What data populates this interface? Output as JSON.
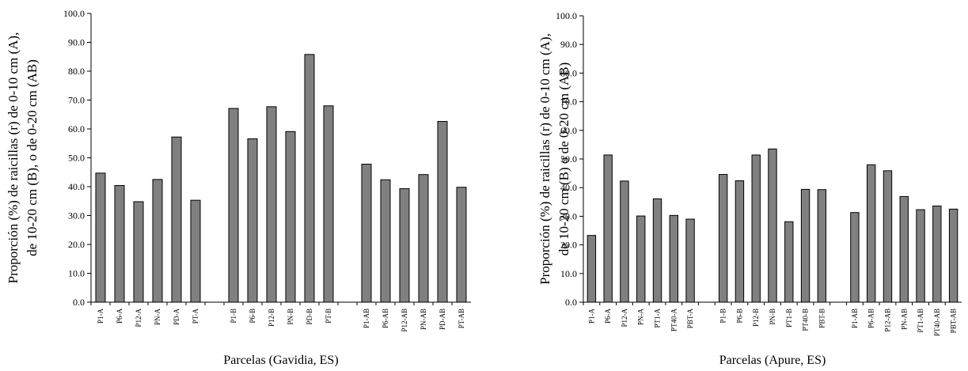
{
  "chart_data": [
    {
      "type": "bar",
      "ylabel": [
        "Proporción (%) de raicillas (r) de 0-10 cm (A),",
        "de 10-20 cm (B), o de 0-20 cm (AB)"
      ],
      "xlabel": "Parcelas (Gavidia, ES)",
      "categories": [
        "P1-A",
        "P6-A",
        "P12-A",
        "PN-A",
        "PD-A",
        "PT-A",
        null,
        "P1-B",
        "P6-B",
        "P12-B",
        "PN-B",
        "PD-B",
        "PT-B",
        null,
        "P1-AB",
        "P6-AB",
        "P12-AB",
        "PN-AB",
        "PD-AB",
        "PT-AB"
      ],
      "values": [
        44.7,
        40.4,
        34.8,
        42.5,
        57.2,
        35.3,
        null,
        67.1,
        56.6,
        67.7,
        59.1,
        85.8,
        68.0,
        null,
        47.8,
        42.4,
        39.3,
        44.2,
        62.6,
        39.8
      ],
      "color": "#808080",
      "ylim": [
        0,
        100
      ],
      "yticks": [
        {
          "value": 0,
          "label": "0.0"
        },
        {
          "value": 10,
          "label": "10.0"
        },
        {
          "value": 20,
          "label": "20.0"
        },
        {
          "value": 30,
          "label": "30.0"
        },
        {
          "value": 40,
          "label": "40.0"
        },
        {
          "value": 50,
          "label": "50.0"
        },
        {
          "value": 60,
          "label": "60.0"
        },
        {
          "value": 70,
          "label": "70.0"
        },
        {
          "value": 80,
          "label": "80.0"
        },
        {
          "value": 90,
          "label": "90.0"
        },
        {
          "value": 100,
          "label": "100.0"
        }
      ]
    },
    {
      "type": "bar",
      "ylabel": [
        "Proporción  (%) de raicillas (r) de 0-10 cm (A),",
        "de 10-20 cm (B) o de 0-20 cm (AB)"
      ],
      "xlabel": "Parcelas (Apure, ES)",
      "categories": [
        "P1-A",
        "P6-A",
        "P12-A",
        "PN-A",
        "PT1-A",
        "PT40-A",
        "PBT-A",
        null,
        "P1-B",
        "P6-B",
        "P12-B",
        "PN-B",
        "PT1-B",
        "PT40-B",
        "PBT-B",
        null,
        "P1-AB",
        "P6-AB",
        "P12-AB",
        "PN-AB",
        "PT1-AB",
        "PT40-AB",
        "PBT-AB"
      ],
      "values": [
        23.3,
        51.4,
        42.3,
        30.1,
        36.1,
        30.3,
        29.0,
        null,
        44.6,
        42.4,
        51.4,
        53.5,
        28.1,
        39.4,
        39.3,
        null,
        31.3,
        48.0,
        45.9,
        36.9,
        32.3,
        33.6,
        32.5
      ],
      "color": "#808080",
      "ylim": [
        0,
        100
      ],
      "yticks": [
        {
          "value": 0,
          "label": "0.0"
        },
        {
          "value": 10,
          "label": "10.0"
        },
        {
          "value": 20,
          "label": "20.0"
        },
        {
          "value": 30,
          "label": "30.0"
        },
        {
          "value": 40,
          "label": "40.0"
        },
        {
          "value": 50,
          "label": "50.0"
        },
        {
          "value": 60,
          "label": "60.0"
        },
        {
          "value": 70,
          "label": "70.0"
        },
        {
          "value": 80,
          "label": "80.0"
        },
        {
          "value": 90,
          "label": "90.0"
        },
        {
          "value": 100,
          "label": "100.0"
        }
      ]
    }
  ]
}
